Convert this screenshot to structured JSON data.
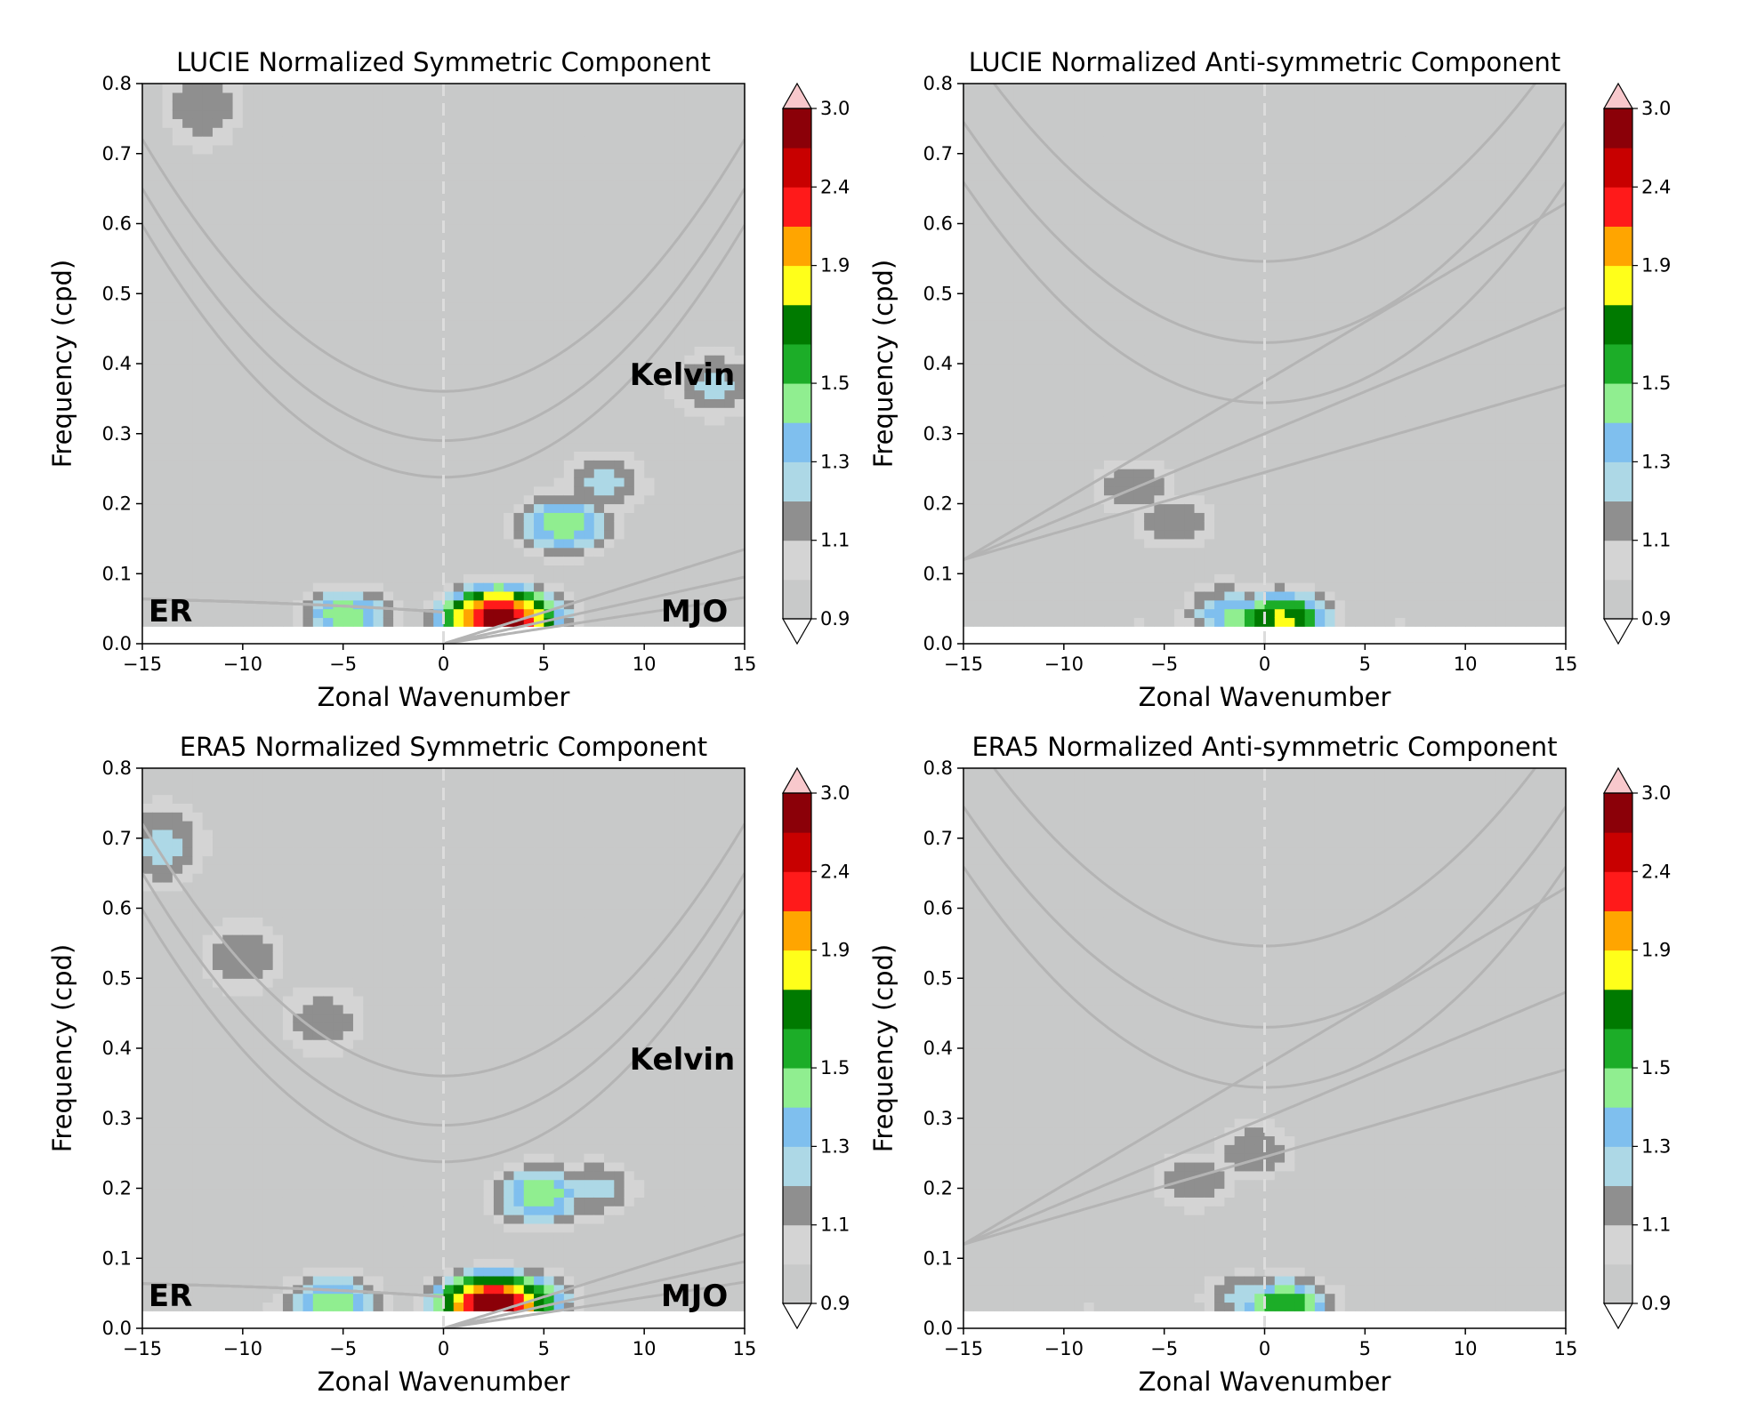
{
  "chart_data": [
    {
      "type": "heatmap",
      "title": "LUCIE Normalized Symmetric Component",
      "xlabel": "Zonal Wavenumber",
      "ylabel": "Frequency (cpd)",
      "xlim": [
        -15,
        15
      ],
      "ylim": [
        0,
        0.8
      ],
      "xticks": [
        -15,
        -10,
        -5,
        0,
        5,
        10,
        15
      ],
      "yticks": [
        0.0,
        0.1,
        0.2,
        0.3,
        0.4,
        0.5,
        0.6,
        0.7,
        0.8
      ],
      "xtick_labels": [
        "−15",
        "−10",
        "−5",
        "0",
        "5",
        "10",
        "15"
      ],
      "ytick_labels": [
        "0.0",
        "0.1",
        "0.2",
        "0.3",
        "0.4",
        "0.5",
        "0.6",
        "0.7",
        "0.8"
      ],
      "annotations": [
        {
          "text": "Kelvin",
          "x": 11.9,
          "y": 0.385
        },
        {
          "text": "ER",
          "x": -13.6,
          "y": 0.047
        },
        {
          "text": "MJO",
          "x": 12.5,
          "y": 0.047
        }
      ],
      "features": [
        {
          "x": 2.8,
          "y": 0.035,
          "level": 3.0
        },
        {
          "x": 3.8,
          "y": 0.04,
          "level": 1.9
        },
        {
          "x": -4.8,
          "y": 0.042,
          "level": 1.6
        },
        {
          "x": 6.0,
          "y": 0.17,
          "level": 1.6
        },
        {
          "x": 8.0,
          "y": 0.23,
          "level": 1.35
        },
        {
          "x": 13.5,
          "y": 0.37,
          "level": 1.35
        },
        {
          "x": -12.0,
          "y": 0.77,
          "level": 1.3
        },
        {
          "x": -10.0,
          "y": 0.7,
          "level": 1.1
        }
      ],
      "colorbar": {
        "min": 0.9,
        "max": 3.0,
        "ticks": [
          "0.9",
          "1.1",
          "1.3",
          "1.5",
          "1.9",
          "2.4",
          "3.0"
        ],
        "extend": "both"
      },
      "grid": false
    },
    {
      "type": "heatmap",
      "title": "LUCIE Normalized Anti-symmetric Component",
      "xlabel": "Zonal Wavenumber",
      "ylabel": "Frequency (cpd)",
      "xlim": [
        -15,
        15
      ],
      "ylim": [
        0,
        0.8
      ],
      "xticks": [
        -15,
        -10,
        -5,
        0,
        5,
        10,
        15
      ],
      "yticks": [
        0.0,
        0.1,
        0.2,
        0.3,
        0.4,
        0.5,
        0.6,
        0.7,
        0.8
      ],
      "xtick_labels": [
        "−15",
        "−10",
        "−5",
        "0",
        "5",
        "10",
        "15"
      ],
      "ytick_labels": [
        "0.0",
        "0.1",
        "0.2",
        "0.3",
        "0.4",
        "0.5",
        "0.6",
        "0.7",
        "0.8"
      ],
      "annotations": [],
      "features": [
        {
          "x": 0.8,
          "y": 0.035,
          "level": 1.95
        },
        {
          "x": -1.5,
          "y": 0.04,
          "level": 1.55
        },
        {
          "x": -6.5,
          "y": 0.225,
          "level": 1.3
        },
        {
          "x": -4.5,
          "y": 0.175,
          "level": 1.3
        },
        {
          "x": -2.0,
          "y": 0.06,
          "level": 1.3
        }
      ],
      "colorbar": {
        "min": 0.9,
        "max": 3.0,
        "ticks": [
          "0.9",
          "1.1",
          "1.3",
          "1.5",
          "1.9",
          "2.4",
          "3.0"
        ],
        "extend": "both"
      },
      "grid": false
    },
    {
      "type": "heatmap",
      "title": "ERA5 Normalized Symmetric Component",
      "xlabel": "Zonal Wavenumber",
      "ylabel": "Frequency (cpd)",
      "xlim": [
        -15,
        15
      ],
      "ylim": [
        0,
        0.8
      ],
      "xticks": [
        -15,
        -10,
        -5,
        0,
        5,
        10,
        15
      ],
      "yticks": [
        0.0,
        0.1,
        0.2,
        0.3,
        0.4,
        0.5,
        0.6,
        0.7,
        0.8
      ],
      "xtick_labels": [
        "−15",
        "−10",
        "−5",
        "0",
        "5",
        "10",
        "15"
      ],
      "ytick_labels": [
        "0.0",
        "0.1",
        "0.2",
        "0.3",
        "0.4",
        "0.5",
        "0.6",
        "0.7",
        "0.8"
      ],
      "annotations": [
        {
          "text": "Kelvin",
          "x": 11.9,
          "y": 0.385
        },
        {
          "text": "ER",
          "x": -13.6,
          "y": 0.047
        },
        {
          "text": "MJO",
          "x": 12.5,
          "y": 0.047
        }
      ],
      "features": [
        {
          "x": 2.5,
          "y": 0.033,
          "level": 3.0
        },
        {
          "x": 3.8,
          "y": 0.04,
          "level": 1.9
        },
        {
          "x": -5.5,
          "y": 0.04,
          "level": 1.6
        },
        {
          "x": 4.8,
          "y": 0.19,
          "level": 1.6
        },
        {
          "x": 7.5,
          "y": 0.2,
          "level": 1.35
        },
        {
          "x": -14.0,
          "y": 0.69,
          "level": 1.35
        },
        {
          "x": -10.0,
          "y": 0.53,
          "level": 1.3
        },
        {
          "x": -6.0,
          "y": 0.44,
          "level": 1.3
        }
      ],
      "colorbar": {
        "min": 0.9,
        "max": 3.0,
        "ticks": [
          "0.9",
          "1.1",
          "1.3",
          "1.5",
          "1.9",
          "2.4",
          "3.0"
        ],
        "extend": "both"
      },
      "grid": false
    },
    {
      "type": "heatmap",
      "title": "ERA5 Normalized Anti-symmetric Component",
      "xlabel": "Zonal Wavenumber",
      "ylabel": "Frequency (cpd)",
      "xlim": [
        -15,
        15
      ],
      "ylim": [
        0,
        0.8
      ],
      "xticks": [
        -15,
        -10,
        -5,
        0,
        5,
        10,
        15
      ],
      "yticks": [
        0.0,
        0.1,
        0.2,
        0.3,
        0.4,
        0.5,
        0.6,
        0.7,
        0.8
      ],
      "xtick_labels": [
        "−15",
        "−10",
        "−5",
        "0",
        "5",
        "10",
        "15"
      ],
      "ytick_labels": [
        "0.0",
        "0.1",
        "0.2",
        "0.3",
        "0.4",
        "0.5",
        "0.6",
        "0.7",
        "0.8"
      ],
      "annotations": [],
      "features": [
        {
          "x": 1.0,
          "y": 0.035,
          "level": 1.7
        },
        {
          "x": -1.0,
          "y": 0.045,
          "level": 1.35
        },
        {
          "x": -3.5,
          "y": 0.21,
          "level": 1.3
        },
        {
          "x": -0.5,
          "y": 0.255,
          "level": 1.3
        },
        {
          "x": 5.0,
          "y": 0.35,
          "level": 1.1
        }
      ],
      "colorbar": {
        "min": 0.9,
        "max": 3.0,
        "ticks": [
          "0.9",
          "1.1",
          "1.3",
          "1.5",
          "1.9",
          "2.4",
          "3.0"
        ],
        "extend": "both"
      },
      "grid": false
    }
  ],
  "colors": {
    "levels": [
      {
        "min": 0.9,
        "color": "#c8c9c9"
      },
      {
        "min": 1.1,
        "color": "#d4d4d4"
      },
      {
        "min": 1.2,
        "color": "#8f8f8f"
      },
      {
        "min": 1.3,
        "color": "#add8e6"
      },
      {
        "min": 1.4,
        "color": "#7fbfee"
      },
      {
        "min": 1.5,
        "color": "#90ee90"
      },
      {
        "min": 1.6,
        "color": "#1cad28"
      },
      {
        "min": 1.75,
        "color": "#007a00"
      },
      {
        "min": 1.9,
        "color": "#ffff1a"
      },
      {
        "min": 2.15,
        "color": "#ffa500"
      },
      {
        "min": 2.4,
        "color": "#ff1a1a"
      },
      {
        "min": 2.7,
        "color": "#8b0008"
      }
    ],
    "over": "#f8c8cc",
    "under": "#ffffff",
    "dispersion_curve": "#b4b4b4",
    "zero_line": "#dcdcdc"
  }
}
